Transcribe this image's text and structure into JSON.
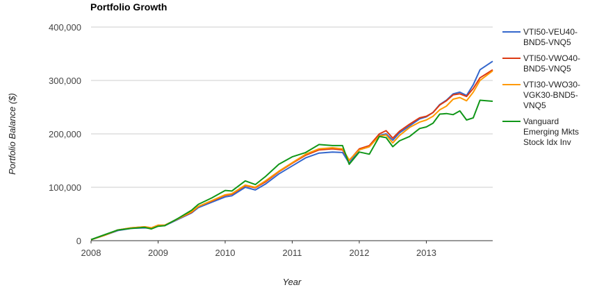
{
  "chart_data": {
    "type": "line",
    "title": "Portfolio Growth",
    "xlabel": "Year",
    "ylabel": "Portfolio Balance ($)",
    "xlim": [
      2008.0,
      2013.99
    ],
    "ylim": [
      0,
      400000
    ],
    "x_ticks": [
      "2008",
      "2009",
      "2010",
      "2011",
      "2012",
      "2013"
    ],
    "y_ticks": [
      "0",
      "100,000",
      "200,000",
      "300,000",
      "400,000"
    ],
    "grid": true,
    "legend_position": "right",
    "x": [
      2008.0,
      2008.2,
      2008.4,
      2008.6,
      2008.8,
      2008.9,
      2009.0,
      2009.1,
      2009.3,
      2009.5,
      2009.6,
      2009.8,
      2010.0,
      2010.1,
      2010.3,
      2010.45,
      2010.6,
      2010.8,
      2011.0,
      2011.2,
      2011.4,
      2011.6,
      2011.75,
      2011.85,
      2012.0,
      2012.15,
      2012.3,
      2012.4,
      2012.5,
      2012.6,
      2012.75,
      2012.9,
      2013.0,
      2013.1,
      2013.2,
      2013.3,
      2013.4,
      2013.5,
      2013.6,
      2013.7,
      2013.8,
      2013.99
    ],
    "series": [
      {
        "name": "VTI50-VEU40-BND5-VNQ5",
        "color": "#3366cc",
        "values": [
          2000,
          10000,
          19000,
          23000,
          24000,
          23000,
          28000,
          28000,
          40000,
          52000,
          62000,
          72000,
          82000,
          84000,
          100000,
          95000,
          106000,
          125000,
          140000,
          155000,
          164000,
          166000,
          165000,
          145000,
          170000,
          176000,
          197000,
          200000,
          188000,
          202000,
          215000,
          228000,
          232000,
          240000,
          255000,
          263000,
          275000,
          278000,
          272000,
          292000,
          320000,
          336000
        ]
      },
      {
        "name": "VTI50-VWO40-BND5-VNQ5",
        "color": "#dc3912",
        "values": [
          2000,
          10000,
          20000,
          24000,
          26000,
          24000,
          29000,
          29000,
          41000,
          53000,
          64000,
          74000,
          85000,
          87000,
          103000,
          99000,
          110000,
          129000,
          145000,
          160000,
          170000,
          172000,
          170000,
          150000,
          172000,
          178000,
          200000,
          206000,
          192000,
          205000,
          218000,
          230000,
          233000,
          240000,
          254000,
          262000,
          273000,
          275000,
          270000,
          285000,
          305000,
          320000
        ]
      },
      {
        "name": "VTI30-VWO30-VGK30-BND5-VNQ5",
        "color": "#ff9900",
        "values": [
          2000,
          10000,
          20000,
          24000,
          26000,
          24000,
          29000,
          29000,
          41000,
          54000,
          64000,
          75000,
          86000,
          88000,
          104000,
          100000,
          112000,
          130000,
          146000,
          162000,
          172000,
          174000,
          172000,
          151000,
          170000,
          176000,
          196000,
          198000,
          183000,
          197000,
          212000,
          222000,
          226000,
          233000,
          245000,
          252000,
          265000,
          268000,
          262000,
          278000,
          300000,
          318000
        ]
      },
      {
        "name": "Vanguard Emerging Mkts Stock Idx Inv",
        "color": "#109618",
        "values": [
          2000,
          11000,
          20000,
          23000,
          25000,
          22000,
          27000,
          28000,
          42000,
          57000,
          68000,
          80000,
          94000,
          93000,
          112000,
          105000,
          120000,
          143000,
          157000,
          165000,
          180000,
          178000,
          178000,
          143000,
          166000,
          162000,
          195000,
          193000,
          176000,
          187000,
          195000,
          210000,
          213000,
          220000,
          237000,
          238000,
          236000,
          243000,
          226000,
          230000,
          263000,
          261000
        ]
      }
    ]
  }
}
